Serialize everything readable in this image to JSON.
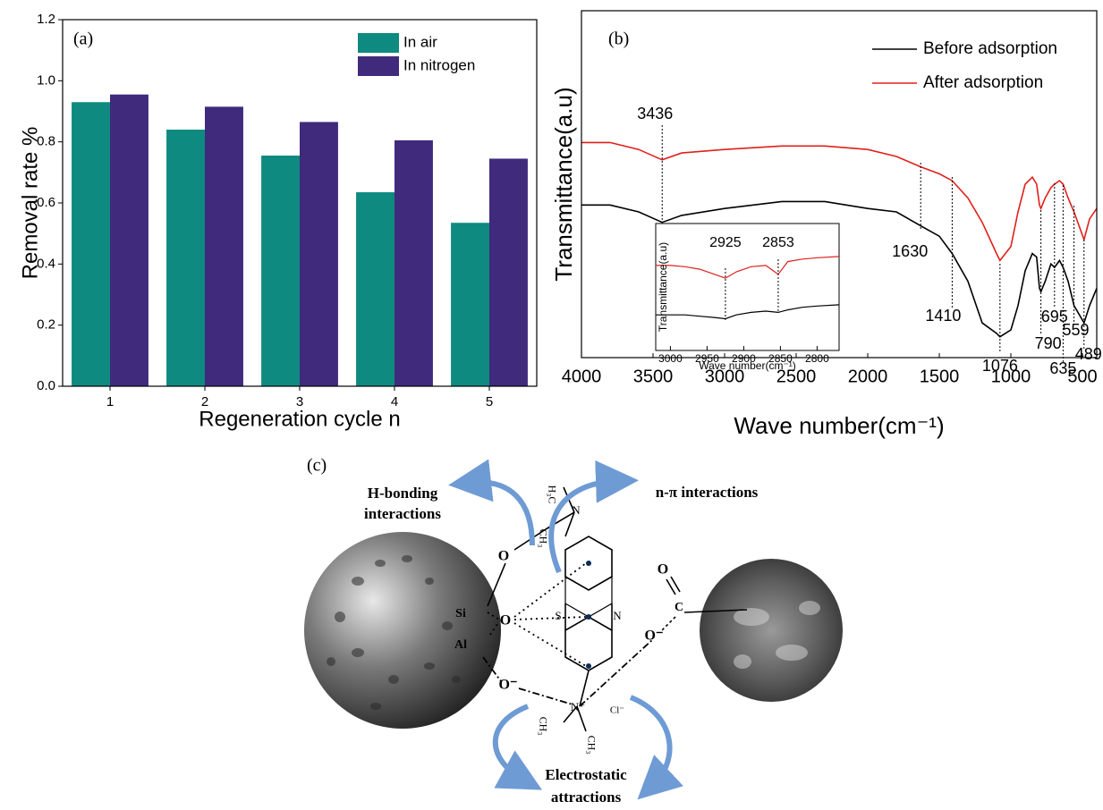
{
  "chart_data": [
    {
      "type": "bar",
      "panel_label": "(a)",
      "x_label": "Regeneration cycle n",
      "y_label": "Removal rate %",
      "categories": [
        "1",
        "2",
        "3",
        "4",
        "5"
      ],
      "series": [
        {
          "name": "In air",
          "color": "#0e8a80",
          "values": [
            0.93,
            0.84,
            0.755,
            0.635,
            0.535
          ]
        },
        {
          "name": "In nitrogen",
          "color": "#3f2a7c",
          "values": [
            0.955,
            0.915,
            0.865,
            0.805,
            0.745
          ]
        }
      ],
      "ylim": [
        0,
        1.2
      ],
      "yticks": [
        {
          "value": 0,
          "label": "0.0"
        },
        0.2,
        0.4,
        0.6,
        0.8,
        {
          "value": 1,
          "label": "1.0"
        },
        1.2
      ],
      "legend": "top-right"
    },
    {
      "type": "line",
      "panel_label": "(b)",
      "x_label": "Wave number(cm⁻¹)",
      "y_label": "Transmittance(a.u)",
      "x": [
        4000,
        3800,
        3600,
        3436,
        3300,
        3000,
        2600,
        2300,
        2000,
        1800,
        1630,
        1500,
        1410,
        1300,
        1200,
        1100,
        1076,
        1000,
        950,
        900,
        850,
        820,
        800,
        790,
        760,
        720,
        695,
        660,
        635,
        600,
        559,
        489,
        450,
        400
      ],
      "series": [
        {
          "name": "Before adsorption",
          "color": "#000000",
          "values": [
            0.44,
            0.44,
            0.42,
            0.39,
            0.41,
            0.43,
            0.45,
            0.45,
            0.43,
            0.42,
            0.38,
            0.35,
            0.3,
            0.22,
            0.1,
            0.07,
            0.06,
            0.08,
            0.15,
            0.25,
            0.3,
            0.29,
            0.2,
            0.19,
            0.22,
            0.27,
            0.26,
            0.28,
            0.26,
            0.22,
            0.15,
            0.1,
            0.15,
            0.2
          ]
        },
        {
          "name": "After adsorption",
          "color": "#e0201b",
          "values": [
            0.62,
            0.62,
            0.6,
            0.57,
            0.59,
            0.6,
            0.61,
            0.61,
            0.6,
            0.58,
            0.55,
            0.53,
            0.51,
            0.46,
            0.39,
            0.3,
            0.28,
            0.32,
            0.42,
            0.5,
            0.52,
            0.5,
            0.44,
            0.43,
            0.46,
            0.49,
            0.5,
            0.51,
            0.5,
            0.46,
            0.42,
            0.34,
            0.4,
            0.43
          ]
        }
      ],
      "xlim": [
        4000,
        400
      ],
      "xticks": [
        4000,
        3500,
        3000,
        2500,
        2000,
        1500,
        1000,
        500
      ],
      "ylim": [
        0,
        1
      ],
      "peaks": [
        3436,
        1630,
        1410,
        1076,
        790,
        695,
        635,
        559,
        489
      ],
      "legend": "top-right"
    },
    {
      "type": "line",
      "x_label": "Wave number(cm⁻¹)",
      "y_label": "Transmittance(a.u)",
      "x": [
        3020,
        3000,
        2980,
        2960,
        2940,
        2925,
        2910,
        2890,
        2870,
        2853,
        2840,
        2820,
        2800,
        2770
      ],
      "series": [
        {
          "color": "#000000",
          "values": [
            0.28,
            0.28,
            0.28,
            0.27,
            0.26,
            0.25,
            0.28,
            0.3,
            0.31,
            0.3,
            0.32,
            0.34,
            0.35,
            0.36
          ]
        },
        {
          "color": "#e0201b",
          "values": [
            0.67,
            0.67,
            0.66,
            0.64,
            0.6,
            0.57,
            0.62,
            0.66,
            0.67,
            0.6,
            0.7,
            0.72,
            0.73,
            0.74
          ]
        }
      ],
      "xlim": [
        3020,
        2770
      ],
      "xticks": [
        3000,
        2950,
        2900,
        2850,
        2800
      ],
      "ylim": [
        0,
        1
      ],
      "peaks": [
        2925,
        2853
      ]
    }
  ],
  "diagram": {
    "panel_label": "(c)",
    "h_bonding": [
      "H-bonding",
      "interactions"
    ],
    "n_pi": "n-π interactions",
    "electrostatic": [
      "Electrostatic",
      "attractions"
    ],
    "atoms": {
      "o1": "O",
      "si": "Si",
      "al": "Al",
      "o2": "O",
      "o3": "O⁻",
      "c": "C",
      "o4": "O",
      "o5": "O⁻",
      "h3c": "H₃C",
      "ch3a": "CH₃",
      "n1": "N",
      "s": "S",
      "n2": "N",
      "n3": "N⁺",
      "ch3b": "CH₃",
      "ch3c": "CH₃",
      "cl": "Cl⁻"
    }
  }
}
